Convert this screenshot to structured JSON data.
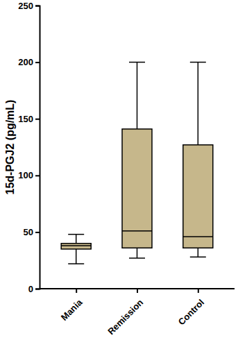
{
  "chart_data": {
    "type": "box",
    "y_label": "15d-PGJ2 (pg/mL)",
    "categories": [
      "Mania",
      "Remission",
      "Control"
    ],
    "stats": [
      {
        "min": 22,
        "q1": 35,
        "median": 38,
        "q3": 40,
        "max": 48
      },
      {
        "min": 27,
        "q1": 36,
        "median": 51,
        "q3": 141,
        "max": 200
      },
      {
        "min": 28,
        "q1": 36,
        "median": 46,
        "q3": 127,
        "max": 200
      }
    ],
    "color": "#c6b78b",
    "ylim": [
      0,
      250
    ],
    "yticks": [
      0,
      50,
      100,
      150,
      200,
      250
    ],
    "grid": false
  }
}
